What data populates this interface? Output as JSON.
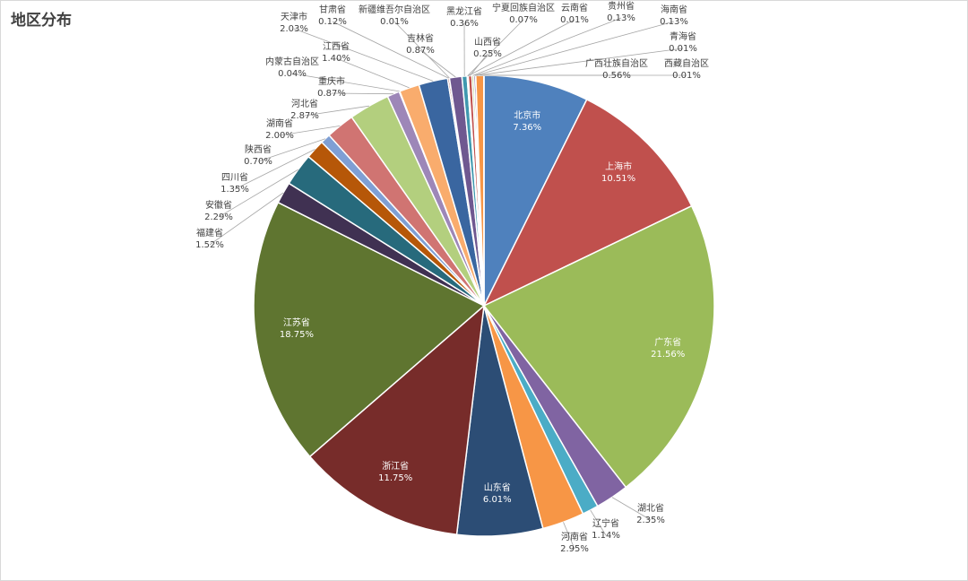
{
  "chart_data": {
    "type": "pie",
    "title": "地区分布",
    "slices": [
      {
        "label": "北京市",
        "value": 7.36,
        "pct": "7.36%",
        "color": "#4f81bd"
      },
      {
        "label": "上海市",
        "value": 10.51,
        "pct": "10.51%",
        "color": "#c0504d"
      },
      {
        "label": "广东省",
        "value": 21.56,
        "pct": "21.56%",
        "color": "#9bbb59"
      },
      {
        "label": "湖北省",
        "value": 2.35,
        "pct": "2.35%",
        "color": "#8064a2"
      },
      {
        "label": "辽宁省",
        "value": 1.14,
        "pct": "1.14%",
        "color": "#4bacc6"
      },
      {
        "label": "河南省",
        "value": 2.95,
        "pct": "2.95%",
        "color": "#f79646"
      },
      {
        "label": "山东省",
        "value": 6.01,
        "pct": "6.01%",
        "color": "#2c4d75"
      },
      {
        "label": "浙江省",
        "value": 11.75,
        "pct": "11.75%",
        "color": "#772c2a"
      },
      {
        "label": "江苏省",
        "value": 18.75,
        "pct": "18.75%",
        "color": "#5f7530"
      },
      {
        "label": "福建省",
        "value": 1.52,
        "pct": "1.52%",
        "color": "#403152"
      },
      {
        "label": "安徽省",
        "value": 2.29,
        "pct": "2.29%",
        "color": "#276a7c"
      },
      {
        "label": "四川省",
        "value": 1.35,
        "pct": "1.35%",
        "color": "#b65708"
      },
      {
        "label": "陕西省",
        "value": 0.7,
        "pct": "0.70%",
        "color": "#7f9fd4"
      },
      {
        "label": "湖南省",
        "value": 2.0,
        "pct": "2.00%",
        "color": "#d07472"
      },
      {
        "label": "河北省",
        "value": 2.87,
        "pct": "2.87%",
        "color": "#b3cf7e"
      },
      {
        "label": "重庆市",
        "value": 0.87,
        "pct": "0.87%",
        "color": "#9d87b8"
      },
      {
        "label": "内蒙古自治区",
        "value": 0.04,
        "pct": "0.04%",
        "color": "#75c1d6"
      },
      {
        "label": "江西省",
        "value": 1.4,
        "pct": "1.40%",
        "color": "#f9ac6d"
      },
      {
        "label": "天津市",
        "value": 2.03,
        "pct": "2.03%",
        "color": "#3a66a0"
      },
      {
        "label": "甘肃省",
        "value": 0.12,
        "pct": "0.12%",
        "color": "#a24b48"
      },
      {
        "label": "新疆维吾尔自治区",
        "value": 0.01,
        "pct": "0.01%",
        "color": "#87a24e"
      },
      {
        "label": "吉林省",
        "value": 0.87,
        "pct": "0.87%",
        "color": "#6f5890"
      },
      {
        "label": "黑龙江省",
        "value": 0.36,
        "pct": "0.36%",
        "color": "#3f98af"
      },
      {
        "label": "宁夏回族自治区",
        "value": 0.07,
        "pct": "0.07%",
        "color": "#d9823c"
      },
      {
        "label": "云南省",
        "value": 0.01,
        "pct": "0.01%",
        "color": "#4f81bd"
      },
      {
        "label": "山西省",
        "value": 0.25,
        "pct": "0.25%",
        "color": "#c0504d"
      },
      {
        "label": "贵州省",
        "value": 0.13,
        "pct": "0.13%",
        "color": "#9bbb59"
      },
      {
        "label": "海南省",
        "value": 0.13,
        "pct": "0.13%",
        "color": "#8064a2"
      },
      {
        "label": "青海省",
        "value": 0.01,
        "pct": "0.01%",
        "color": "#4bacc6"
      },
      {
        "label": "广西壮族自治区",
        "value": 0.56,
        "pct": "0.56%",
        "color": "#f79646"
      },
      {
        "label": "西藏自治区",
        "value": 0.01,
        "pct": "0.01%",
        "color": "#2c4d75"
      }
    ]
  }
}
